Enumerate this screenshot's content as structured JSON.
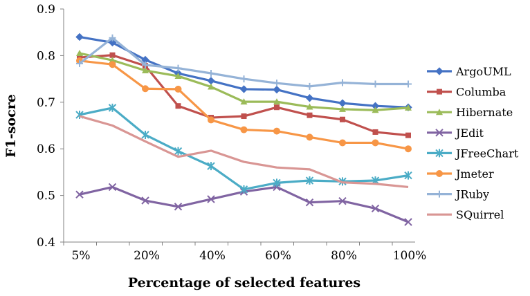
{
  "chart_data": {
    "type": "line",
    "title": "",
    "xlabel": "Percentage of selected features",
    "ylabel": "F1-socre",
    "ylim": [
      0.4,
      0.9
    ],
    "y_ticks": [
      "0.4",
      "0.5",
      "0.6",
      "0.7",
      "0.8",
      "0.9"
    ],
    "x_tick_labels": [
      "5%",
      "20%",
      "40%",
      "60%",
      "80%",
      "100%"
    ],
    "x": [
      1,
      2,
      3,
      4,
      5,
      6,
      7,
      8,
      9,
      10,
      11
    ],
    "grid": false,
    "legend_position": "right",
    "series": [
      {
        "name": "ArgoUML",
        "color": "#4472C4",
        "marker": "diamond",
        "values": [
          0.84,
          0.828,
          0.791,
          0.762,
          0.746,
          0.728,
          0.727,
          0.709,
          0.698,
          0.692,
          0.689
        ]
      },
      {
        "name": "Columba",
        "color": "#C0504D",
        "marker": "square",
        "values": [
          0.796,
          0.801,
          0.778,
          0.692,
          0.667,
          0.67,
          0.689,
          0.672,
          0.663,
          0.636,
          0.629
        ]
      },
      {
        "name": "Hibernate",
        "color": "#9BBB59",
        "marker": "triangle",
        "values": [
          0.805,
          0.79,
          0.768,
          0.756,
          0.733,
          0.701,
          0.701,
          0.69,
          0.685,
          0.683,
          0.688
        ]
      },
      {
        "name": "JEdit",
        "color": "#8064A2",
        "marker": "x",
        "values": [
          0.502,
          0.518,
          0.489,
          0.476,
          0.492,
          0.508,
          0.518,
          0.485,
          0.488,
          0.472,
          0.443
        ]
      },
      {
        "name": "JFreeChart",
        "color": "#4BACC6",
        "marker": "star",
        "values": [
          0.673,
          0.688,
          0.63,
          0.595,
          0.563,
          0.513,
          0.527,
          0.532,
          0.53,
          0.532,
          0.543
        ]
      },
      {
        "name": "Jmeter",
        "color": "#F79646",
        "marker": "circle",
        "values": [
          0.789,
          0.781,
          0.729,
          0.728,
          0.662,
          0.641,
          0.638,
          0.625,
          0.613,
          0.613,
          0.6
        ]
      },
      {
        "name": "JRuby",
        "color": "#95B3D7",
        "marker": "plus",
        "values": [
          0.783,
          0.838,
          0.78,
          0.773,
          0.762,
          0.75,
          0.741,
          0.734,
          0.742,
          0.739,
          0.739
        ]
      },
      {
        "name": "SQuirrel",
        "color": "#D99694",
        "marker": "none",
        "values": [
          0.67,
          0.65,
          0.616,
          0.583,
          0.596,
          0.572,
          0.56,
          0.556,
          0.528,
          0.525,
          0.518
        ]
      }
    ]
  }
}
